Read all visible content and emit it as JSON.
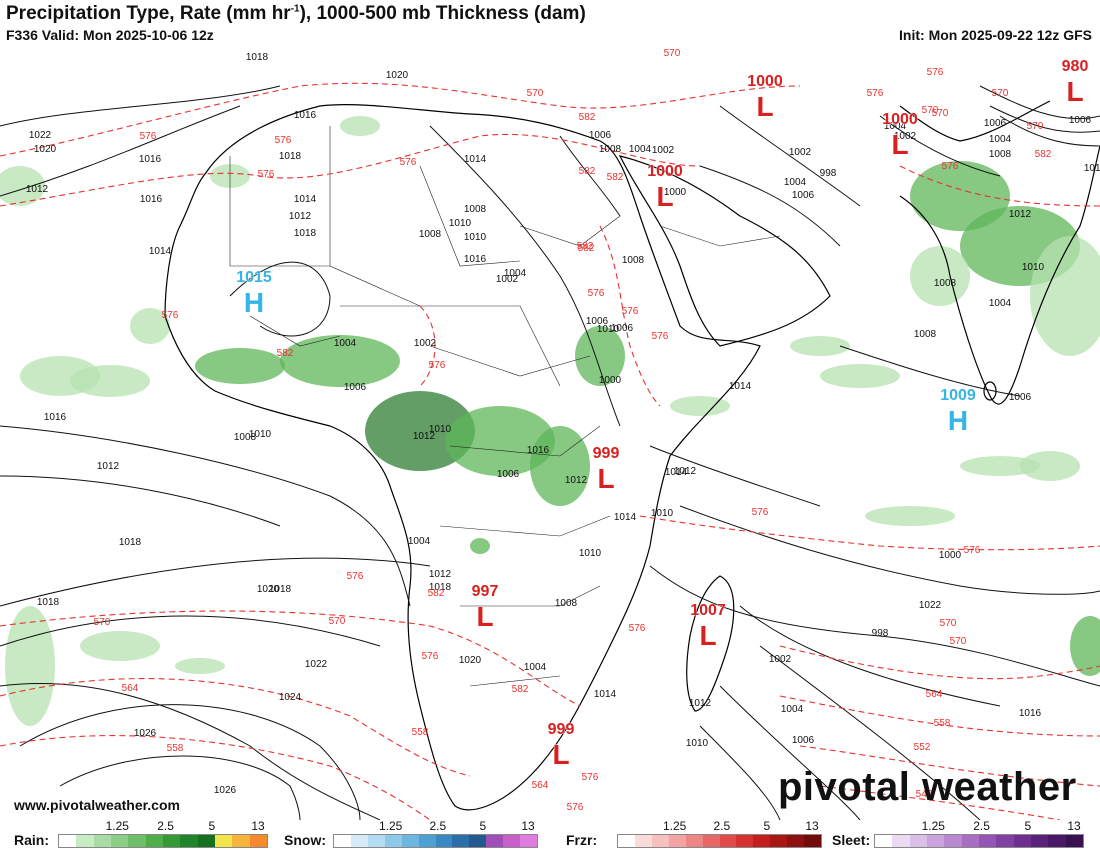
{
  "header": {
    "title_main": "Precipitation Type, Rate (mm hr",
    "title_sup": "-1",
    "title_rest": "), 1000-500 mb Thickness (dam)",
    "valid": "F336 Valid: Mon 2025-10-06 12z",
    "init": "Init: Mon 2025-09-22 12z GFS"
  },
  "branding": {
    "website": "www.pivotalweather.com",
    "logo_text": "pivotal weather"
  },
  "colors": {
    "isobar": "#111111",
    "thickness": "#e8322f",
    "low_center": "#d92020",
    "high_center": "#33b5e5",
    "coast": "#000000",
    "rain_light": "#b5e2b0",
    "rain_mid": "#5fb65a",
    "rain_heavy": "#2e7d32"
  },
  "pressure_centers": [
    {
      "type": "L",
      "value": "1000",
      "label": "L"
    },
    {
      "type": "L",
      "value": "1000",
      "label": "L"
    },
    {
      "type": "L",
      "value": "1000",
      "label": "L"
    },
    {
      "type": "L",
      "value": "980",
      "label": "L"
    },
    {
      "type": "H",
      "value": "1015",
      "label": "H"
    },
    {
      "type": "L",
      "value": "999",
      "label": "L"
    },
    {
      "type": "H",
      "value": "1009",
      "label": "H"
    },
    {
      "type": "L",
      "value": "997",
      "label": "L"
    },
    {
      "type": "L",
      "value": "1007",
      "label": "L"
    },
    {
      "type": "L",
      "value": "999",
      "label": "L"
    }
  ],
  "isobar_labels": [
    "1018",
    "1020",
    "1016",
    "1022",
    "1020",
    "1016",
    "1018",
    "1014",
    "1012",
    "1016",
    "1014",
    "1010",
    "1008",
    "1018",
    "1016",
    "1014",
    "1012",
    "1010",
    "1008",
    "1006",
    "1008",
    "1004",
    "1002",
    "1000",
    "1002",
    "1004",
    "1006",
    "998",
    "1004",
    "1002",
    "1006",
    "1004",
    "1008",
    "1006",
    "1014",
    "1012",
    "1010",
    "1008",
    "1004",
    "1008",
    "1006",
    "1014",
    "1014",
    "1010",
    "1012",
    "1010",
    "1008",
    "1006",
    "1006",
    "1004",
    "1002",
    "1000",
    "1002",
    "1004",
    "1006",
    "1008",
    "1010",
    "1012",
    "1016",
    "1018",
    "1020",
    "1022",
    "1024",
    "1026",
    "1026",
    "1018",
    "1018",
    "1016",
    "1022",
    "1000",
    "998",
    "1002",
    "1004",
    "1006",
    "1010",
    "1012",
    "1014",
    "1010",
    "1012",
    "1018",
    "1020",
    "1004",
    "1008",
    "1012",
    "1014",
    "1016",
    "1010",
    "1012",
    "1004",
    "1006"
  ],
  "thickness_labels": [
    "570",
    "576",
    "570",
    "576",
    "576",
    "582",
    "570",
    "576",
    "570",
    "576",
    "582",
    "582",
    "570",
    "576",
    "582",
    "576",
    "576",
    "582",
    "576",
    "576",
    "576",
    "576",
    "576",
    "582",
    "582",
    "576",
    "582",
    "570",
    "576",
    "570",
    "576",
    "564",
    "558",
    "558",
    "576",
    "576",
    "564",
    "570",
    "552",
    "546",
    "576",
    "570",
    "564",
    "558",
    "582",
    "570"
  ],
  "legend": {
    "rain": {
      "label": "Rain:",
      "ticks": [
        "1.25",
        "2.5",
        "5",
        "13"
      ],
      "colors": [
        "#ffffff",
        "#c7ebc3",
        "#a9dca4",
        "#8dce87",
        "#6fbf69",
        "#4fae4a",
        "#359a35",
        "#1f8528",
        "#157020",
        "#f2e54b",
        "#f7b43a",
        "#f68a2d"
      ]
    },
    "snow": {
      "label": "Snow:",
      "ticks": [
        "1.25",
        "2.5",
        "5",
        "13"
      ],
      "colors": [
        "#ffffff",
        "#d5ecf8",
        "#b4dcf2",
        "#8fc9ea",
        "#6db6e0",
        "#4e9fd2",
        "#3a88c3",
        "#2b6fa8",
        "#225a90",
        "#a04fb8",
        "#c95fc8",
        "#e07be0"
      ]
    },
    "frzr": {
      "label": "Frzr:",
      "ticks": [
        "1.25",
        "2.5",
        "5",
        "13"
      ],
      "colors": [
        "#ffffff",
        "#fadbdb",
        "#f6c0c0",
        "#f2a3a3",
        "#ee8686",
        "#e86666",
        "#e04a4a",
        "#d63030",
        "#c41d1d",
        "#a81616",
        "#8e1010",
        "#730b0b"
      ]
    },
    "sleet": {
      "label": "Sleet:",
      "ticks": [
        "1.25",
        "2.5",
        "5",
        "13"
      ],
      "colors": [
        "#ffffff",
        "#ecd9f2",
        "#dcbfe8",
        "#cba4dd",
        "#b989d1",
        "#a76ec4",
        "#9455b5",
        "#8140a4",
        "#6e2f91",
        "#5b227c",
        "#4a1866",
        "#3a1050"
      ]
    }
  }
}
